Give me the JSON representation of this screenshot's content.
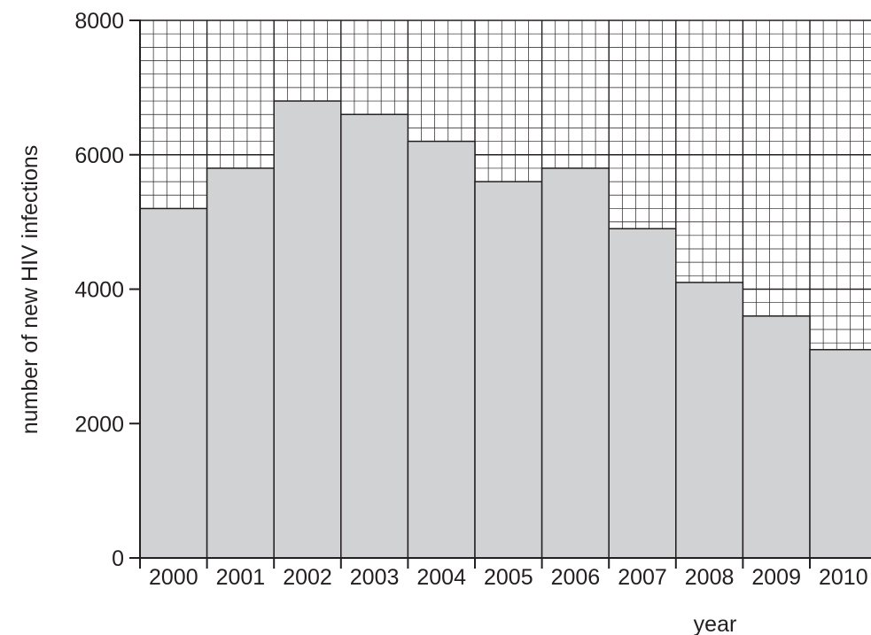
{
  "chart_data": {
    "type": "bar",
    "categories": [
      "2000",
      "2001",
      "2002",
      "2003",
      "2004",
      "2005",
      "2006",
      "2007",
      "2008",
      "2009",
      "2010"
    ],
    "values": [
      5200,
      5800,
      6800,
      6600,
      6200,
      5600,
      5800,
      4900,
      4100,
      3600,
      3100
    ],
    "xlabel": "year",
    "ylabel": "number of new HIV infections",
    "ylim": [
      0,
      8000
    ],
    "yticks": [
      "0",
      "2000",
      "4000",
      "6000",
      "8000"
    ],
    "grid": true,
    "colors": {
      "bar_fill": "#d1d2d4",
      "stroke": "#231f20"
    }
  }
}
